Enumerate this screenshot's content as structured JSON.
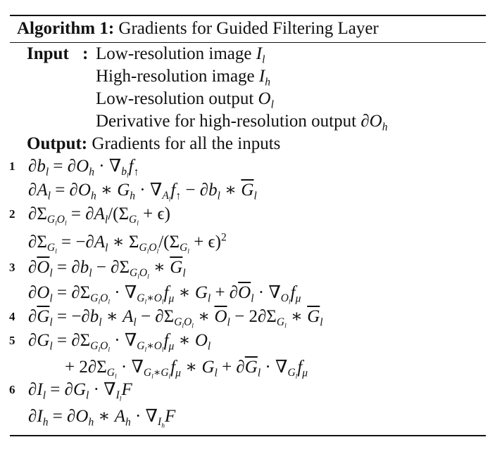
{
  "algorithm": {
    "label": "Algorithm 1:",
    "title": "Gradients for Guided Filtering Layer"
  },
  "input": {
    "keyword": "Input",
    "colon": ":",
    "items": [
      "Low-resolution image",
      "High-resolution image",
      "Low-resolution output",
      "Derivative for high-resolution output"
    ],
    "symbols": [
      "I_l",
      "I_h",
      "O_l",
      "∂O_h"
    ]
  },
  "output": {
    "keyword": "Output:",
    "text": "Gradients for all the inputs"
  },
  "line_numbers": [
    "1",
    "2",
    "3",
    "4",
    "5",
    "6"
  ],
  "equations": [
    "∂b_l = ∂O_h · ∇_{b_l} f_↑",
    "∂A_l = ∂O_h ∗ G_h · ∇_{A_l} f_↑ − ∂b_l ∗ Ḡ_l",
    "∂Σ_{G_l O_l} = ∂A_l / (Σ_{G_l} + ϵ)",
    "∂Σ_{G_l} = −∂A_l ∗ Σ_{G_l O_l} / (Σ_{G_l} + ϵ)^2",
    "∂Ō_l = ∂b_l − ∂Σ_{G_l O_l} ∗ Ḡ_l",
    "∂O_l = ∂Σ_{G_l O_l} · ∇_{G_l∗O_l} f_μ ∗ G_l + ∂Ō_l · ∇_{O_l} f_μ",
    "∂Ḡ_l = −∂b_l ∗ A_l − ∂Σ_{G_l O_l} ∗ Ō_l − 2∂Σ_{G_l} ∗ Ḡ_l",
    "∂G_l = ∂Σ_{G_l O_l} · ∇_{G_l∗O_l} f_μ ∗ O_l",
    "+ 2∂Σ_{G_l} · ∇_{G_l∗G_l} f_μ ∗ G_l + ∂Ḡ_l · ∇_{G_l} f_μ",
    "∂I_l = ∂G_l · ∇_{I_l} F",
    "∂I_h = ∂O_h ∗ A_h · ∇_{I_h} F"
  ]
}
